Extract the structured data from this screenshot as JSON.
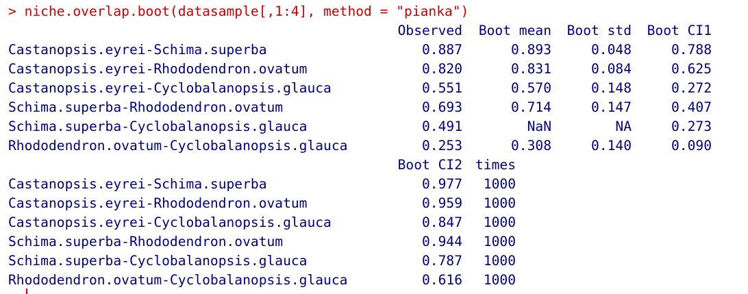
{
  "console": {
    "prompt_symbol": ">",
    "command": "niche.overlap.boot(datasample[,1:4], method = \"pianka\")",
    "table1": {
      "headers": [
        "Observed",
        "Boot mean",
        "Boot std",
        "Boot CI1"
      ],
      "rows": [
        {
          "name": "Castanopsis.eyrei-Schima.superba",
          "values": [
            "0.887",
            "0.893",
            "0.048",
            "0.788"
          ]
        },
        {
          "name": "Castanopsis.eyrei-Rhododendron.ovatum",
          "values": [
            "0.820",
            "0.831",
            "0.084",
            "0.625"
          ]
        },
        {
          "name": "Castanopsis.eyrei-Cyclobalanopsis.glauca",
          "values": [
            "0.551",
            "0.570",
            "0.148",
            "0.272"
          ]
        },
        {
          "name": "Schima.superba-Rhododendron.ovatum",
          "values": [
            "0.693",
            "0.714",
            "0.147",
            "0.407"
          ]
        },
        {
          "name": "Schima.superba-Cyclobalanopsis.glauca",
          "values": [
            "0.491",
            "NaN",
            "NA",
            "0.273"
          ]
        },
        {
          "name": "Rhododendron.ovatum-Cyclobalanopsis.glauca",
          "values": [
            "0.253",
            "0.308",
            "0.140",
            "0.090"
          ]
        }
      ]
    },
    "table2": {
      "headers": [
        "Boot CI2",
        "times"
      ],
      "rows": [
        {
          "name": "Castanopsis.eyrei-Schima.superba",
          "values": [
            "0.977",
            "1000"
          ]
        },
        {
          "name": "Castanopsis.eyrei-Rhododendron.ovatum",
          "values": [
            "0.959",
            "1000"
          ]
        },
        {
          "name": "Castanopsis.eyrei-Cyclobalanopsis.glauca",
          "values": [
            "0.847",
            "1000"
          ]
        },
        {
          "name": "Schima.superba-Rhododendron.ovatum",
          "values": [
            "0.944",
            "1000"
          ]
        },
        {
          "name": "Schima.superba-Cyclobalanopsis.glauca",
          "values": [
            "0.787",
            "1000"
          ]
        },
        {
          "name": "Rhododendron.ovatum-Cyclobalanopsis.glauca",
          "values": [
            "0.616",
            "1000"
          ]
        }
      ]
    }
  },
  "colors": {
    "prompt": "#cc0000",
    "output": "#000080",
    "background": "#ffffff"
  }
}
